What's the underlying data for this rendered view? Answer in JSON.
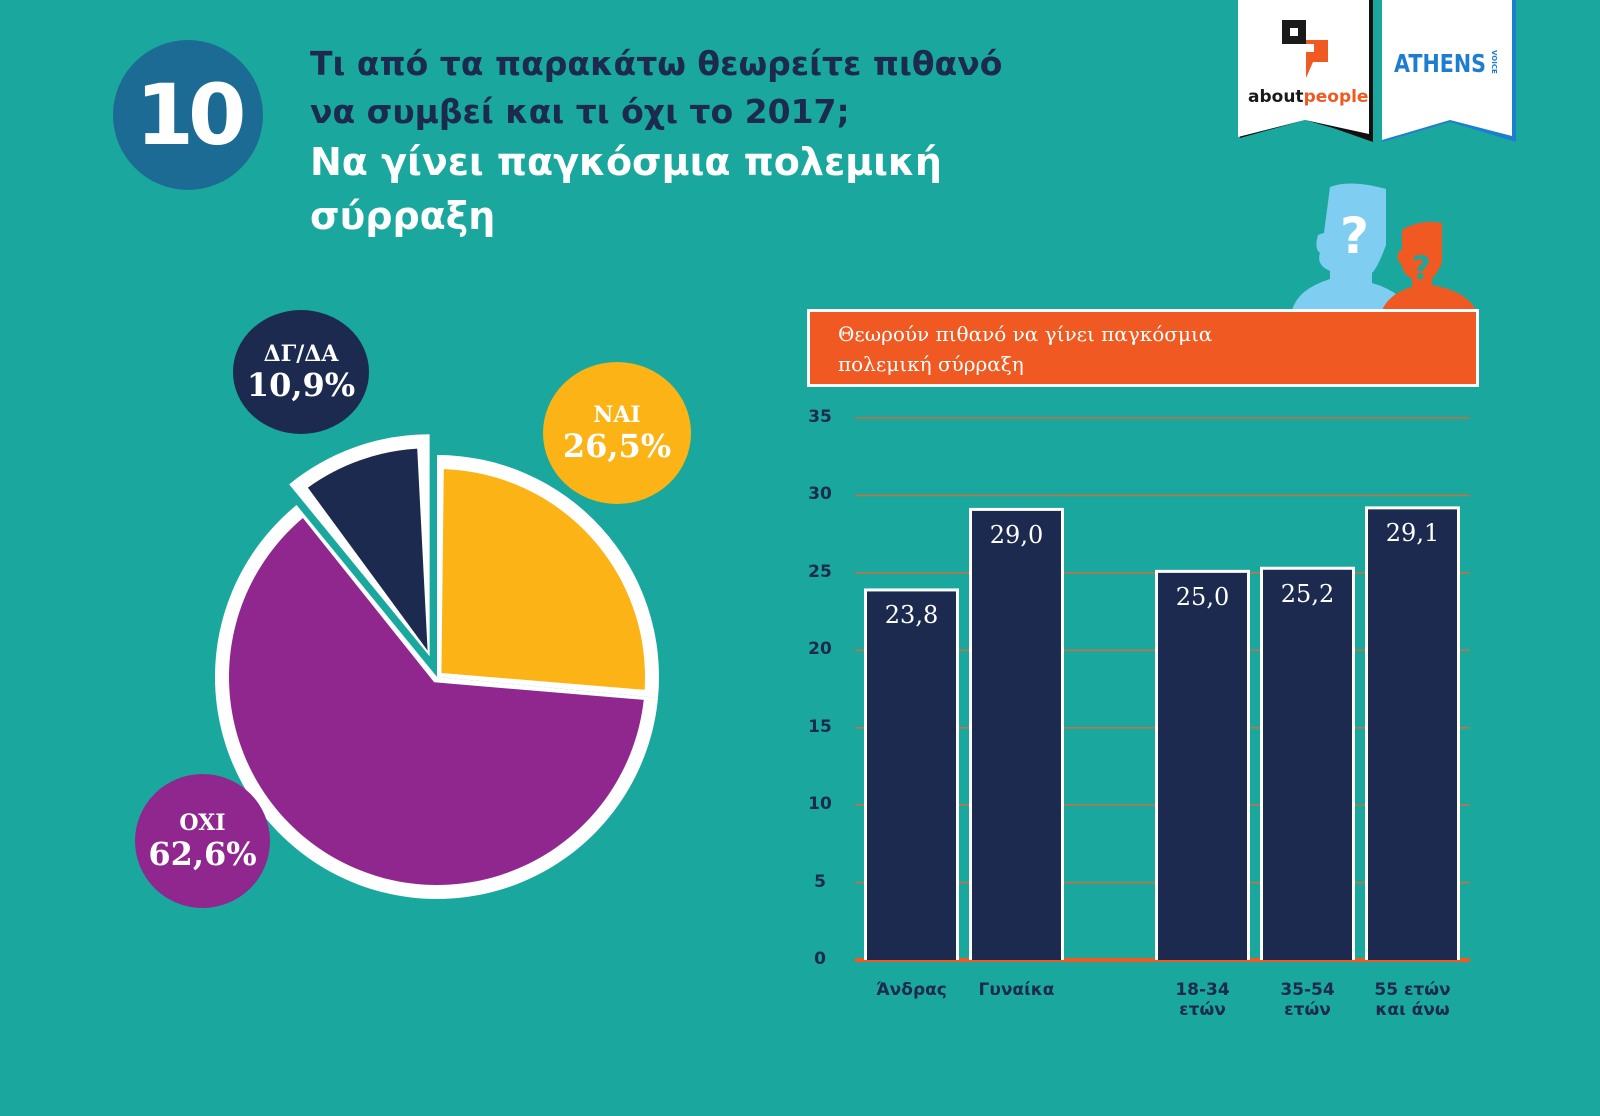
{
  "colors": {
    "background": "#1aa89e",
    "badge": "#1c6b94",
    "navy": "#1b2a4e",
    "nai": "#fbb316",
    "oxi": "#90278e",
    "dgda": "#1b2a4e",
    "orange": "#f05a22",
    "light_blue": "#7fcdf1"
  },
  "header": {
    "number": "10",
    "question_line1": "Τι από τα παρακάτω θεωρείτε πιθανό",
    "question_line2": "να συμβεί και τι όχι το 2017;",
    "headline_line1": "Να γίνει παγκόσμια πολεμική",
    "headline_line2": "σύρραξη"
  },
  "logos": {
    "aboutpeople_part1": "about",
    "aboutpeople_part2": "people",
    "athens": "ATHENS",
    "voice": "VOICE"
  },
  "chart_data": [
    {
      "type": "pie",
      "title": "Να γίνει παγκόσμια πολεμική σύρραξη",
      "slices": [
        {
          "label": "NAI",
          "value": 26.5,
          "display": "26,5%",
          "color": "#fbb316"
        },
        {
          "label": "OXI",
          "value": 62.6,
          "display": "62,6%",
          "color": "#90278e"
        },
        {
          "label": "ΔΓ/ΔΑ",
          "value": 10.9,
          "display": "10,9%",
          "color": "#1b2a4e",
          "exploded": true
        }
      ]
    },
    {
      "type": "bar",
      "title_line1": "Θεωρούν πιθανό να γίνει παγκόσμια",
      "title_line2": "πολεμική σύρραξη",
      "categories": [
        {
          "line1": "Άνδρας",
          "line2": ""
        },
        {
          "line1": "Γυναίκα",
          "line2": ""
        },
        {
          "line1": "18-34",
          "line2": "ετών"
        },
        {
          "line1": "35-54",
          "line2": "ετών"
        },
        {
          "line1": "55 ετών",
          "line2": "και άνω"
        }
      ],
      "values": [
        23.8,
        29.0,
        25.0,
        25.2,
        29.1
      ],
      "value_labels": [
        "23,8",
        "29,0",
        "25,0",
        "25,2",
        "29,1"
      ],
      "ylim": [
        0,
        35
      ],
      "yticks": [
        "0",
        "5",
        "10",
        "15",
        "20",
        "25",
        "30",
        "35"
      ],
      "grid": true,
      "bar_color": "#1b2a4e"
    }
  ]
}
